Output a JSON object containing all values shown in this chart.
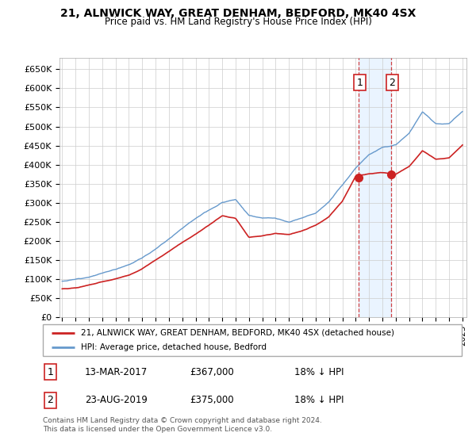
{
  "title": "21, ALNWICK WAY, GREAT DENHAM, BEDFORD, MK40 4SX",
  "subtitle": "Price paid vs. HM Land Registry's House Price Index (HPI)",
  "ylabel_ticks": [
    "£0",
    "£50K",
    "£100K",
    "£150K",
    "£200K",
    "£250K",
    "£300K",
    "£350K",
    "£400K",
    "£450K",
    "£500K",
    "£550K",
    "£600K",
    "£650K"
  ],
  "ytick_values": [
    0,
    50000,
    100000,
    150000,
    200000,
    250000,
    300000,
    350000,
    400000,
    450000,
    500000,
    550000,
    600000,
    650000
  ],
  "hpi_color": "#6699cc",
  "price_color": "#cc2222",
  "shaded_color": "#ddeeff",
  "annotation1_date": "13-MAR-2017",
  "annotation1_price": "£367,000",
  "annotation1_hpi": "18% ↓ HPI",
  "annotation2_date": "23-AUG-2019",
  "annotation2_price": "£375,000",
  "annotation2_hpi": "18% ↓ HPI",
  "legend_label1": "21, ALNWICK WAY, GREAT DENHAM, BEDFORD, MK40 4SX (detached house)",
  "legend_label2": "HPI: Average price, detached house, Bedford",
  "footer": "Contains HM Land Registry data © Crown copyright and database right 2024.\nThis data is licensed under the Open Government Licence v3.0.",
  "background_color": "#ffffff",
  "plot_bg_color": "#ffffff",
  "grid_color": "#cccccc",
  "hpi_key_years": [
    1995,
    1996,
    1997,
    1998,
    1999,
    2000,
    2001,
    2002,
    2003,
    2004,
    2005,
    2006,
    2007,
    2008,
    2009,
    2010,
    2011,
    2012,
    2013,
    2014,
    2015,
    2016,
    2017,
    2018,
    2019,
    2020,
    2021,
    2022,
    2023,
    2024,
    2025
  ],
  "hpi_key_vals": [
    95000,
    100000,
    108000,
    118000,
    128000,
    142000,
    160000,
    183000,
    210000,
    240000,
    268000,
    290000,
    310000,
    320000,
    278000,
    272000,
    270000,
    258000,
    268000,
    282000,
    312000,
    355000,
    400000,
    435000,
    455000,
    460000,
    490000,
    545000,
    515000,
    515000,
    548000
  ],
  "price_key_years": [
    1995,
    1996,
    1997,
    1998,
    1999,
    2000,
    2001,
    2002,
    2003,
    2004,
    2005,
    2006,
    2007,
    2008,
    2009,
    2010,
    2011,
    2012,
    2013,
    2014,
    2015,
    2016,
    2017,
    2018,
    2019,
    2020,
    2021,
    2022,
    2023,
    2024,
    2025
  ],
  "price_key_vals": [
    75000,
    78000,
    85000,
    93000,
    100000,
    110000,
    126000,
    148000,
    172000,
    195000,
    215000,
    238000,
    262000,
    255000,
    205000,
    208000,
    215000,
    212000,
    222000,
    237000,
    260000,
    300000,
    367000,
    372000,
    375000,
    370000,
    390000,
    432000,
    410000,
    415000,
    448000
  ],
  "sale1_year": 2017.19,
  "sale1_price": 367000,
  "sale2_year": 2019.64,
  "sale2_price": 375000
}
